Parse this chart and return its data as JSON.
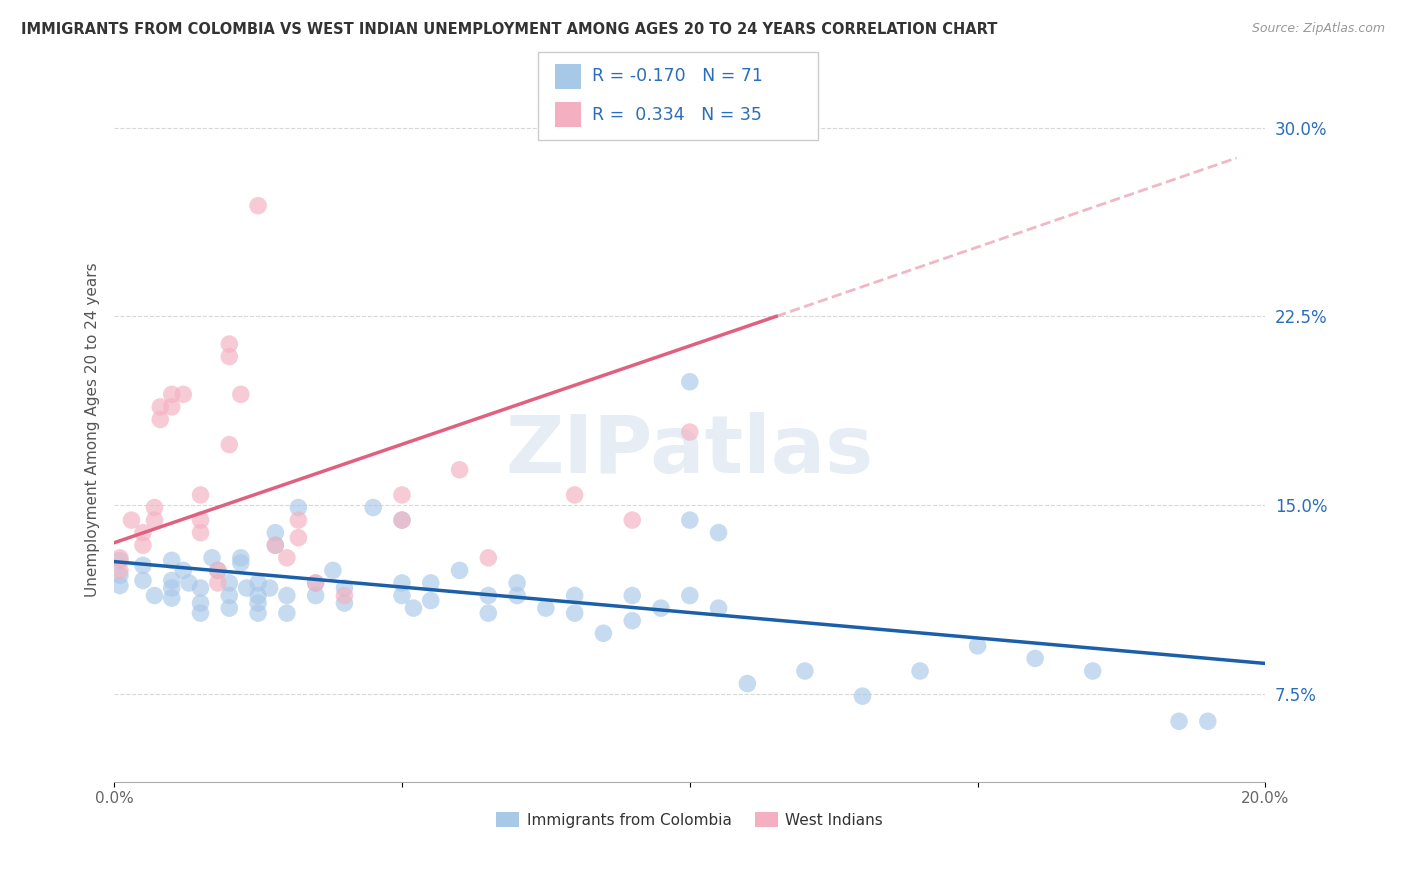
{
  "title": "IMMIGRANTS FROM COLOMBIA VS WEST INDIAN UNEMPLOYMENT AMONG AGES 20 TO 24 YEARS CORRELATION CHART",
  "source": "Source: ZipAtlas.com",
  "ylabel": "Unemployment Among Ages 20 to 24 years",
  "xlim": [
    0.0,
    0.2
  ],
  "ylim": [
    0.04,
    0.32
  ],
  "x_ticks": [
    0.0,
    0.05,
    0.1,
    0.15,
    0.2
  ],
  "x_tick_labels": [
    "0.0%",
    "",
    "",
    "",
    "20.0%"
  ],
  "y_ticks": [
    0.075,
    0.15,
    0.225,
    0.3
  ],
  "y_tick_labels": [
    "7.5%",
    "15.0%",
    "22.5%",
    "30.0%"
  ],
  "grid_color": "#d8d8d8",
  "background_color": "#ffffff",
  "watermark": "ZIPatlas",
  "legend_R1": "-0.170",
  "legend_N1": "71",
  "legend_R2": "0.334",
  "legend_N2": "35",
  "colombia_color": "#a8c8e8",
  "westindian_color": "#f4b0c0",
  "colombia_line_color": "#1a5fa8",
  "westindian_line_color": "#e06080",
  "colombia_scatter": [
    [
      0.001,
      0.128
    ],
    [
      0.001,
      0.122
    ],
    [
      0.001,
      0.118
    ],
    [
      0.005,
      0.126
    ],
    [
      0.005,
      0.12
    ],
    [
      0.007,
      0.114
    ],
    [
      0.01,
      0.128
    ],
    [
      0.01,
      0.12
    ],
    [
      0.01,
      0.117
    ],
    [
      0.01,
      0.113
    ],
    [
      0.012,
      0.124
    ],
    [
      0.013,
      0.119
    ],
    [
      0.015,
      0.117
    ],
    [
      0.015,
      0.111
    ],
    [
      0.015,
      0.107
    ],
    [
      0.017,
      0.129
    ],
    [
      0.018,
      0.124
    ],
    [
      0.02,
      0.119
    ],
    [
      0.02,
      0.114
    ],
    [
      0.02,
      0.109
    ],
    [
      0.022,
      0.129
    ],
    [
      0.022,
      0.127
    ],
    [
      0.023,
      0.117
    ],
    [
      0.025,
      0.119
    ],
    [
      0.025,
      0.114
    ],
    [
      0.025,
      0.111
    ],
    [
      0.025,
      0.107
    ],
    [
      0.027,
      0.117
    ],
    [
      0.028,
      0.139
    ],
    [
      0.028,
      0.134
    ],
    [
      0.03,
      0.114
    ],
    [
      0.03,
      0.107
    ],
    [
      0.032,
      0.149
    ],
    [
      0.035,
      0.119
    ],
    [
      0.035,
      0.114
    ],
    [
      0.038,
      0.124
    ],
    [
      0.04,
      0.117
    ],
    [
      0.04,
      0.111
    ],
    [
      0.045,
      0.149
    ],
    [
      0.05,
      0.144
    ],
    [
      0.05,
      0.119
    ],
    [
      0.05,
      0.114
    ],
    [
      0.052,
      0.109
    ],
    [
      0.055,
      0.119
    ],
    [
      0.055,
      0.112
    ],
    [
      0.06,
      0.124
    ],
    [
      0.065,
      0.114
    ],
    [
      0.065,
      0.107
    ],
    [
      0.07,
      0.119
    ],
    [
      0.07,
      0.114
    ],
    [
      0.075,
      0.109
    ],
    [
      0.08,
      0.114
    ],
    [
      0.08,
      0.107
    ],
    [
      0.085,
      0.099
    ],
    [
      0.09,
      0.114
    ],
    [
      0.09,
      0.104
    ],
    [
      0.095,
      0.109
    ],
    [
      0.1,
      0.199
    ],
    [
      0.1,
      0.144
    ],
    [
      0.1,
      0.114
    ],
    [
      0.105,
      0.139
    ],
    [
      0.105,
      0.109
    ],
    [
      0.11,
      0.079
    ],
    [
      0.12,
      0.084
    ],
    [
      0.13,
      0.074
    ],
    [
      0.14,
      0.084
    ],
    [
      0.15,
      0.094
    ],
    [
      0.16,
      0.089
    ],
    [
      0.17,
      0.084
    ],
    [
      0.185,
      0.064
    ],
    [
      0.19,
      0.064
    ]
  ],
  "westindian_scatter": [
    [
      0.001,
      0.129
    ],
    [
      0.001,
      0.124
    ],
    [
      0.003,
      0.144
    ],
    [
      0.005,
      0.139
    ],
    [
      0.005,
      0.134
    ],
    [
      0.007,
      0.149
    ],
    [
      0.007,
      0.144
    ],
    [
      0.008,
      0.189
    ],
    [
      0.008,
      0.184
    ],
    [
      0.01,
      0.194
    ],
    [
      0.01,
      0.189
    ],
    [
      0.012,
      0.194
    ],
    [
      0.015,
      0.154
    ],
    [
      0.015,
      0.144
    ],
    [
      0.015,
      0.139
    ],
    [
      0.018,
      0.124
    ],
    [
      0.018,
      0.119
    ],
    [
      0.02,
      0.214
    ],
    [
      0.02,
      0.209
    ],
    [
      0.02,
      0.174
    ],
    [
      0.022,
      0.194
    ],
    [
      0.025,
      0.269
    ],
    [
      0.028,
      0.134
    ],
    [
      0.03,
      0.129
    ],
    [
      0.032,
      0.144
    ],
    [
      0.032,
      0.137
    ],
    [
      0.035,
      0.119
    ],
    [
      0.04,
      0.114
    ],
    [
      0.05,
      0.154
    ],
    [
      0.05,
      0.144
    ],
    [
      0.06,
      0.164
    ],
    [
      0.065,
      0.129
    ],
    [
      0.08,
      0.154
    ],
    [
      0.09,
      0.144
    ],
    [
      0.1,
      0.179
    ]
  ],
  "colombia_trendline": [
    [
      0.0,
      0.1275
    ],
    [
      0.2,
      0.087
    ]
  ],
  "westindian_trendline_solid": [
    [
      0.0,
      0.135
    ],
    [
      0.115,
      0.225
    ]
  ],
  "westindian_trendline_dash": [
    [
      0.115,
      0.225
    ],
    [
      0.195,
      0.288
    ]
  ]
}
